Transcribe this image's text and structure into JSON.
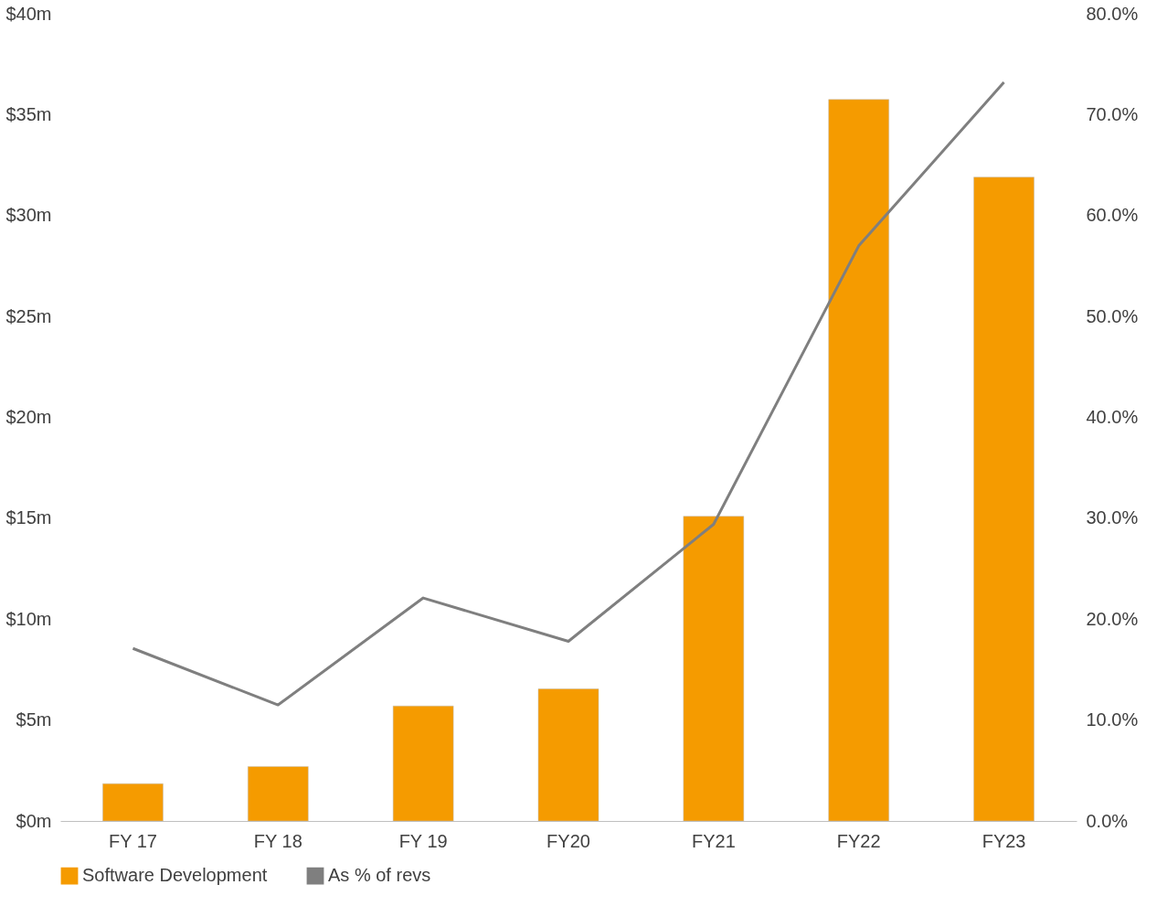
{
  "chart_data": {
    "type": "bar",
    "categories": [
      "FY 17",
      "FY 18",
      "FY 19",
      "FY20",
      "FY21",
      "FY22",
      "FY23"
    ],
    "series": [
      {
        "name": "Software Development",
        "color": "#f59b00",
        "values": [
          1.85,
          2.7,
          5.7,
          6.55,
          15.1,
          35.75,
          31.9
        ]
      },
      {
        "name": "As % of revs",
        "type": "line",
        "axis": "y2",
        "color": "#7f7f7f",
        "values": [
          17.1,
          11.5,
          22.1,
          17.8,
          29.4,
          57.0,
          73.2
        ]
      }
    ],
    "ylim": [
      0,
      40
    ],
    "yticks": [
      {
        "value": 0,
        "label": "$0m"
      },
      {
        "value": 5,
        "label": "$5m"
      },
      {
        "value": 10,
        "label": "$10m"
      },
      {
        "value": 15,
        "label": "$15m"
      },
      {
        "value": 20,
        "label": "$20m"
      },
      {
        "value": 25,
        "label": "$25m"
      },
      {
        "value": 30,
        "label": "$30m"
      },
      {
        "value": 35,
        "label": "$35m"
      },
      {
        "value": 40,
        "label": "$40m"
      }
    ],
    "y2lim": [
      0,
      80
    ],
    "y2ticks": [
      {
        "value": 0,
        "label": "0.0%"
      },
      {
        "value": 10,
        "label": "10.0%"
      },
      {
        "value": 20,
        "label": "20.0%"
      },
      {
        "value": 30,
        "label": "30.0%"
      },
      {
        "value": 40,
        "label": "40.0%"
      },
      {
        "value": 50,
        "label": "50.0%"
      },
      {
        "value": 60,
        "label": "60.0%"
      },
      {
        "value": 70,
        "label": "70.0%"
      },
      {
        "value": 80,
        "label": "80.0%"
      }
    ],
    "grid": false,
    "legend": "bottom",
    "marker": "none",
    "line_style": "solid"
  }
}
